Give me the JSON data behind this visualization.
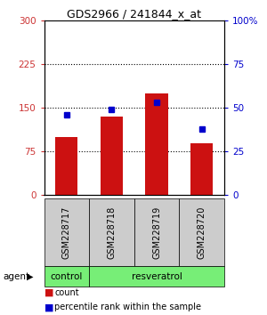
{
  "title": "GDS2966 / 241844_x_at",
  "categories": [
    "GSM228717",
    "GSM228718",
    "GSM228719",
    "GSM228720"
  ],
  "counts": [
    100,
    135,
    175,
    90
  ],
  "percentiles": [
    46,
    49,
    53,
    38
  ],
  "bar_color": "#cc1111",
  "dot_color": "#0000cc",
  "ylim_left": [
    0,
    300
  ],
  "ylim_right": [
    0,
    100
  ],
  "yticks_left": [
    0,
    75,
    150,
    225,
    300
  ],
  "ytick_labels_left": [
    "0",
    "75",
    "150",
    "225",
    "300"
  ],
  "yticks_right": [
    0,
    25,
    50,
    75,
    100
  ],
  "ytick_labels_right": [
    "0",
    "25",
    "50",
    "75",
    "100%"
  ],
  "hlines": [
    75,
    150,
    225
  ],
  "agent_labels": [
    "control",
    "resveratrol"
  ],
  "agent_color": "#77ee77",
  "legend_count_label": "count",
  "legend_pct_label": "percentile rank within the sample",
  "bg_color": "#ffffff",
  "plot_bg": "#ffffff",
  "xlabel_bg": "#cccccc",
  "bar_width": 0.5
}
